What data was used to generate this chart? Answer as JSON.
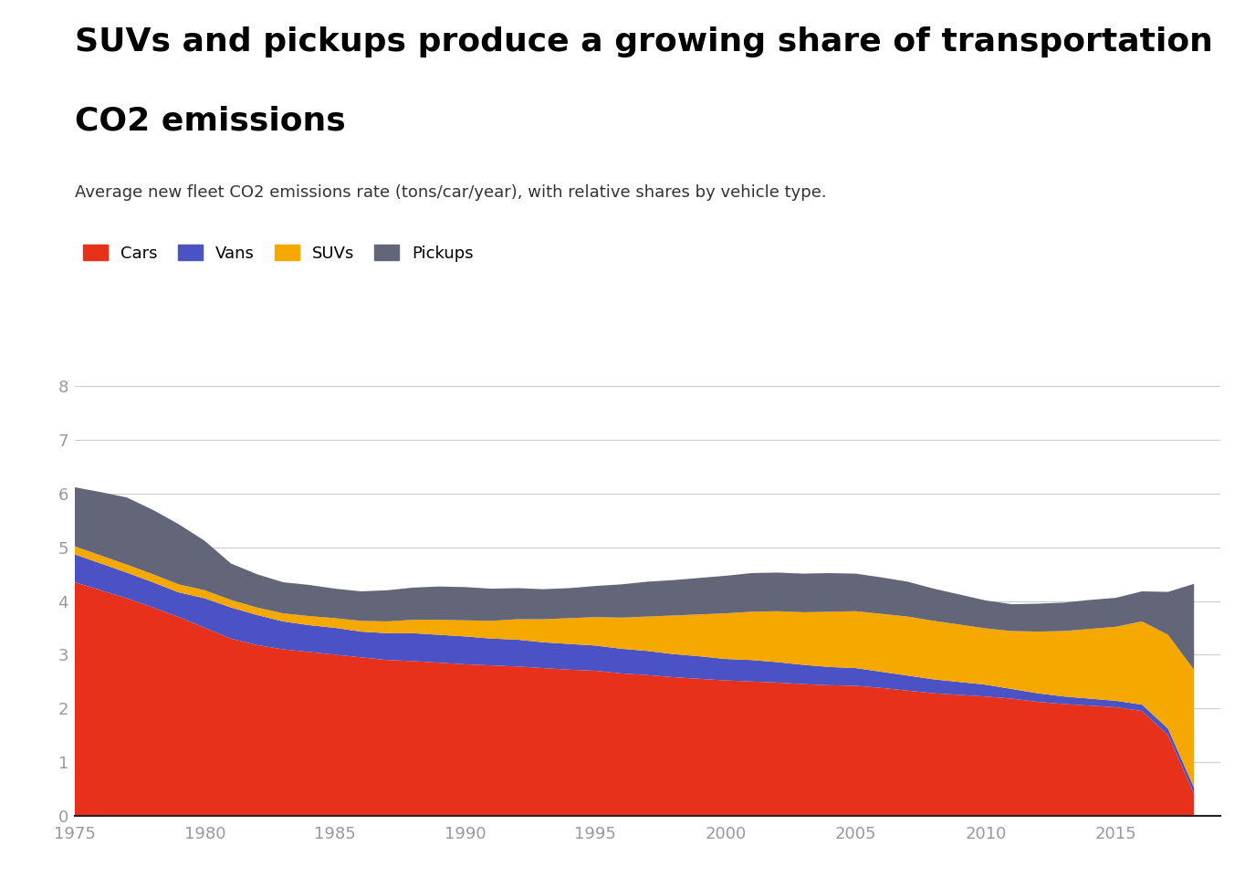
{
  "title_line1": "SUVs and pickups produce a growing share of transportation",
  "title_line2": "CO2 emissions",
  "subtitle": "Average new fleet CO2 emissions rate (tons/car/year), with relative shares by vehicle type.",
  "legend_labels": [
    "Cars",
    "Vans",
    "SUVs",
    "Pickups"
  ],
  "colors": [
    "#E8311A",
    "#4B52C4",
    "#F5A800",
    "#636578"
  ],
  "years": [
    1975,
    1976,
    1977,
    1978,
    1979,
    1980,
    1981,
    1982,
    1983,
    1984,
    1985,
    1986,
    1987,
    1988,
    1989,
    1990,
    1991,
    1992,
    1993,
    1994,
    1995,
    1996,
    1997,
    1998,
    1999,
    2000,
    2001,
    2002,
    2003,
    2004,
    2005,
    2006,
    2007,
    2008,
    2009,
    2010,
    2011,
    2012,
    2013,
    2014,
    2015,
    2016,
    2017,
    2018
  ],
  "cars": [
    4.35,
    4.2,
    4.05,
    3.88,
    3.7,
    3.5,
    3.3,
    3.18,
    3.1,
    3.05,
    3.0,
    2.95,
    2.9,
    2.88,
    2.85,
    2.82,
    2.8,
    2.78,
    2.75,
    2.72,
    2.7,
    2.65,
    2.62,
    2.58,
    2.55,
    2.52,
    2.5,
    2.48,
    2.45,
    2.43,
    2.42,
    2.38,
    2.33,
    2.28,
    2.25,
    2.22,
    2.18,
    2.12,
    2.08,
    2.05,
    2.02,
    1.95,
    1.5,
    0.4
  ],
  "vans": [
    0.52,
    0.5,
    0.48,
    0.47,
    0.46,
    0.55,
    0.58,
    0.56,
    0.52,
    0.5,
    0.5,
    0.48,
    0.5,
    0.52,
    0.52,
    0.52,
    0.5,
    0.5,
    0.48,
    0.48,
    0.47,
    0.46,
    0.45,
    0.43,
    0.42,
    0.4,
    0.4,
    0.38,
    0.36,
    0.34,
    0.33,
    0.3,
    0.28,
    0.26,
    0.24,
    0.22,
    0.18,
    0.16,
    0.14,
    0.13,
    0.12,
    0.12,
    0.12,
    0.12
  ],
  "suvs": [
    0.15,
    0.15,
    0.15,
    0.15,
    0.15,
    0.15,
    0.14,
    0.14,
    0.15,
    0.17,
    0.18,
    0.2,
    0.22,
    0.25,
    0.28,
    0.3,
    0.33,
    0.38,
    0.43,
    0.48,
    0.53,
    0.58,
    0.64,
    0.72,
    0.78,
    0.85,
    0.9,
    0.95,
    0.98,
    1.03,
    1.06,
    1.08,
    1.1,
    1.09,
    1.07,
    1.05,
    1.08,
    1.15,
    1.22,
    1.3,
    1.38,
    1.55,
    1.75,
    2.2
  ],
  "pickups": [
    1.1,
    1.18,
    1.25,
    1.2,
    1.12,
    0.92,
    0.68,
    0.62,
    0.58,
    0.58,
    0.55,
    0.55,
    0.58,
    0.6,
    0.62,
    0.62,
    0.6,
    0.58,
    0.56,
    0.56,
    0.58,
    0.62,
    0.65,
    0.66,
    0.68,
    0.7,
    0.72,
    0.72,
    0.72,
    0.72,
    0.7,
    0.68,
    0.65,
    0.6,
    0.56,
    0.52,
    0.5,
    0.52,
    0.53,
    0.54,
    0.54,
    0.56,
    0.8,
    1.6
  ],
  "ylim": [
    0,
    8.5
  ],
  "yticks": [
    0.0,
    1.0,
    2.0,
    3.0,
    4.0,
    5.0,
    6.0,
    7.0,
    8.0
  ],
  "xticks": [
    1975,
    1980,
    1985,
    1990,
    1995,
    2000,
    2005,
    2010,
    2015
  ],
  "xlim_max": 2019,
  "background_color": "#FFFFFF",
  "grid_color": "#CCCCCC",
  "tick_color": "#999999",
  "title_fontsize": 26,
  "subtitle_fontsize": 13,
  "tick_fontsize": 13,
  "legend_fontsize": 13
}
